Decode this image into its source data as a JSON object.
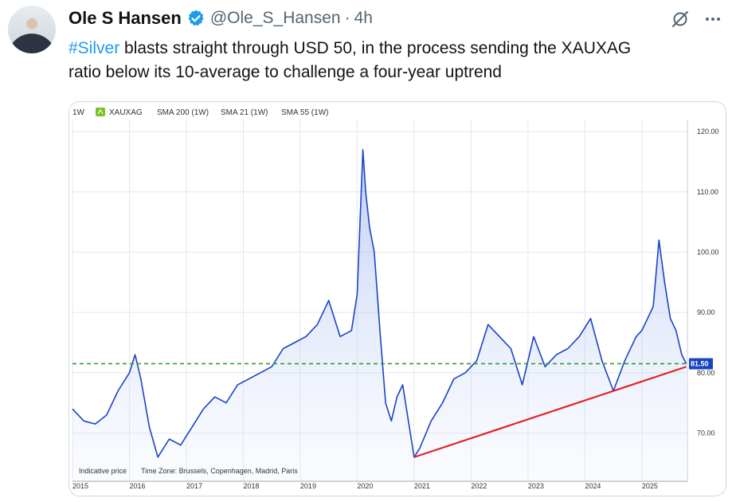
{
  "tweet": {
    "author_name": "Ole S Hansen",
    "handle": "@Ole_S_Hansen",
    "separator": "·",
    "time": "4h",
    "text_hashtag": "#Silver",
    "text_line1_rest": " blasts straight through USD 50, in the process sending the XAUXAG",
    "text_line2": "ratio below its 10-average to challenge a four-year uptrend"
  },
  "icons": {
    "verified": "verified-badge-icon",
    "grok": "grok-icon",
    "more": "more-icon"
  },
  "colors": {
    "accent": "#1d9bf0",
    "line": "#1a44c4",
    "trendline": "#e0242b",
    "dashed": "#2ca02c",
    "price_label_bg": "#1a44c4"
  },
  "chart_legend": {
    "timeframe": "1W",
    "symbol": "XAUXAG",
    "sma200": "SMA 200 (1W)",
    "sma21": "SMA 21 (1W)",
    "sma55": "SMA 55 (1W)"
  },
  "chart_footer": {
    "indicative": "Indicative price",
    "timezone": "Time Zone: Brussels, Copenhagen, Madrid, Paris"
  },
  "chart_data": {
    "type": "line",
    "series": [
      {
        "name": "XAUXAG",
        "x": [
          2015.0,
          2015.2,
          2015.4,
          2015.6,
          2015.8,
          2016.0,
          2016.1,
          2016.2,
          2016.35,
          2016.5,
          2016.7,
          2016.9,
          2017.1,
          2017.3,
          2017.5,
          2017.7,
          2017.9,
          2018.1,
          2018.3,
          2018.5,
          2018.7,
          2018.9,
          2019.1,
          2019.3,
          2019.5,
          2019.7,
          2019.9,
          2020.0,
          2020.1,
          2020.15,
          2020.22,
          2020.3,
          2020.4,
          2020.5,
          2020.6,
          2020.7,
          2020.8,
          2020.9,
          2021.0,
          2021.1,
          2021.3,
          2021.5,
          2021.7,
          2021.9,
          2022.1,
          2022.3,
          2022.5,
          2022.7,
          2022.9,
          2023.1,
          2023.3,
          2023.5,
          2023.7,
          2023.9,
          2024.1,
          2024.3,
          2024.5,
          2024.7,
          2024.9,
          2025.0,
          2025.1,
          2025.2,
          2025.3,
          2025.4,
          2025.5,
          2025.6,
          2025.7,
          2025.78
        ],
        "y": [
          74,
          72,
          71.5,
          73,
          77,
          80,
          83,
          79,
          71,
          66,
          69,
          68,
          71,
          74,
          76,
          75,
          78,
          79,
          80,
          81,
          84,
          85,
          86,
          88,
          92,
          86,
          87,
          93,
          117,
          110,
          104,
          100,
          87,
          75,
          72,
          76,
          78,
          72,
          66,
          67.5,
          72,
          75,
          79,
          80,
          82,
          88,
          86,
          84,
          78,
          86,
          81,
          83,
          84,
          86,
          89,
          82,
          77,
          82,
          86,
          87,
          89,
          91,
          102,
          95,
          89,
          87,
          83,
          81.5
        ]
      }
    ],
    "current_value_label": "81.50",
    "horizontal_line": 81.5,
    "trendline": {
      "x": [
        2021.0,
        2025.78
      ],
      "y": [
        66,
        81
      ]
    },
    "x_ticks": [
      "2015",
      "2016",
      "2017",
      "2018",
      "2019",
      "2020",
      "2021",
      "2022",
      "2023",
      "2024",
      "2025"
    ],
    "y_ticks": [
      "120.00",
      "110.00",
      "100.00",
      "90.00",
      "80.00",
      "70.00"
    ],
    "xlim": [
      2015,
      2025.8
    ],
    "ylim": [
      62,
      122
    ],
    "grid": true,
    "title": "",
    "xlabel": "",
    "ylabel": ""
  }
}
